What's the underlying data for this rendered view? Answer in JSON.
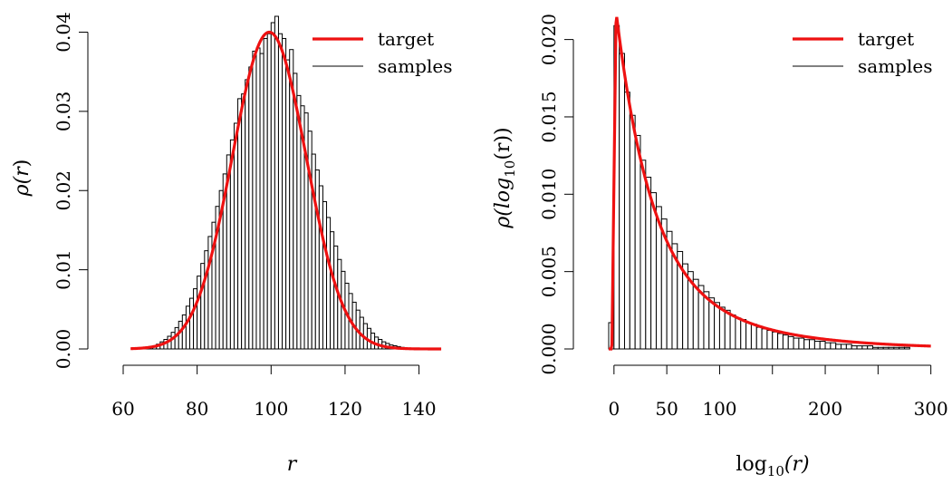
{
  "chart_data": [
    {
      "type": "histogram",
      "xlabel_base": "r",
      "ylabel_base": "ρ(r",
      "ylabel_close": ")",
      "xticks": [
        60,
        80,
        100,
        120,
        140
      ],
      "yticks": [
        "0.00",
        "0.01",
        "0.02",
        "0.03",
        "0.04"
      ],
      "xlim": [
        60,
        145
      ],
      "ylim": [
        0,
        0.042
      ],
      "legend": {
        "position": "top-right",
        "entries": [
          {
            "label": "target",
            "color": "#ee1111"
          },
          {
            "label": "samples",
            "color": "#000000"
          }
        ]
      },
      "histogram": {
        "bin_start": 62,
        "bin_width": 1,
        "counts": [
          0.0,
          0.0,
          0.0001,
          0.0001,
          0.0002,
          0.0003,
          0.0004,
          0.0006,
          0.0009,
          0.0012,
          0.0016,
          0.0021,
          0.0027,
          0.0035,
          0.0043,
          0.0054,
          0.0064,
          0.0076,
          0.0092,
          0.0108,
          0.0124,
          0.0142,
          0.016,
          0.018,
          0.02,
          0.0221,
          0.0245,
          0.0264,
          0.0285,
          0.0316,
          0.0322,
          0.034,
          0.0356,
          0.0376,
          0.038,
          0.0373,
          0.0392,
          0.0398,
          0.0412,
          0.042,
          0.0398,
          0.0392,
          0.0365,
          0.0378,
          0.0348,
          0.032,
          0.0307,
          0.0298,
          0.0275,
          0.0246,
          0.0226,
          0.0206,
          0.0186,
          0.0166,
          0.0148,
          0.013,
          0.0113,
          0.0098,
          0.0083,
          0.007,
          0.0059,
          0.0049,
          0.004,
          0.0032,
          0.0026,
          0.002,
          0.0015,
          0.0012,
          0.0009,
          0.0007,
          0.0005,
          0.0004,
          0.0003,
          0.0002,
          0.0001,
          0.0001,
          0.0,
          0.0,
          0.0,
          0.0,
          0.0,
          0.0,
          0.0,
          0.0
        ]
      },
      "target_curve": {
        "color": "#ee1111",
        "mean": 99.5,
        "sd": 10.0,
        "peak": 0.04,
        "x_range": [
          62,
          146
        ]
      }
    },
    {
      "type": "histogram",
      "xlabel_base": "log",
      "xlabel_sub": "10",
      "xlabel_rest": "(r)",
      "ylabel_base": "ρ(log",
      "ylabel_sub": "10",
      "ylabel_rest": "(r))",
      "xticks": [
        0,
        50,
        100,
        200,
        300
      ],
      "xtick_marks": [
        0,
        50,
        100,
        150,
        200,
        250,
        300
      ],
      "yticks": [
        "0.000",
        "0.005",
        "0.010",
        "0.015",
        "0.020"
      ],
      "xlim": [
        -5,
        302
      ],
      "ylim": [
        0,
        0.0215
      ],
      "legend": {
        "position": "top-right",
        "entries": [
          {
            "label": "target",
            "color": "#ee1111"
          },
          {
            "label": "samples",
            "color": "#000000"
          }
        ]
      },
      "histogram": {
        "bin_start": -5,
        "bin_width": 5,
        "counts": [
          0.0017,
          0.0209,
          0.0191,
          0.0166,
          0.0151,
          0.0138,
          0.0122,
          0.0111,
          0.0101,
          0.0092,
          0.0084,
          0.0076,
          0.0068,
          0.0063,
          0.0055,
          0.005,
          0.0045,
          0.0041,
          0.0037,
          0.0033,
          0.003,
          0.0027,
          0.0025,
          0.0022,
          0.002,
          0.0019,
          0.0017,
          0.0016,
          0.0014,
          0.0013,
          0.0012,
          0.0011,
          0.001,
          0.0009,
          0.0008,
          0.0007,
          0.0007,
          0.0006,
          0.0006,
          0.0005,
          0.0005,
          0.0004,
          0.0004,
          0.0003,
          0.0003,
          0.0003,
          0.0002,
          0.0002,
          0.0002,
          0.0002,
          0.0001,
          0.0001,
          0.0001,
          0.0001,
          0.0001,
          0.0001,
          0.0001,
          0.0,
          0.0,
          0.0,
          0.0
        ]
      },
      "target_curve": {
        "color": "#ee1111",
        "type": "gamma-like",
        "peak_x": 2,
        "peak": 0.0218,
        "x_range": [
          -5,
          300
        ]
      }
    }
  ]
}
